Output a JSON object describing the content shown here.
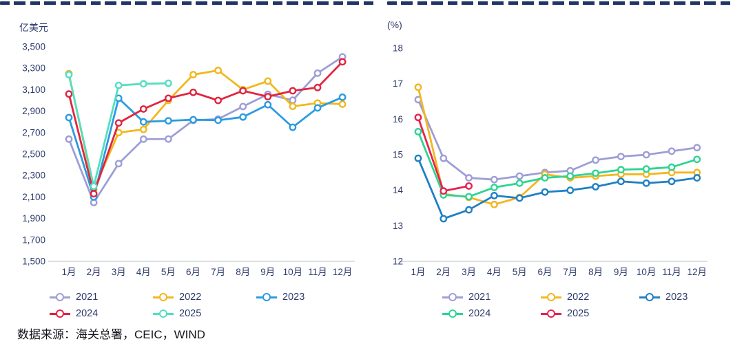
{
  "page": {
    "source_note": "数据来源：海关总署，CEIC，WIND"
  },
  "chart_data": [
    {
      "id": "exports",
      "type": "line",
      "unit_label": "亿美元",
      "categories": [
        "1月",
        "2月",
        "3月",
        "4月",
        "5月",
        "6月",
        "7月",
        "8月",
        "9月",
        "10月",
        "11月",
        "12月"
      ],
      "ylim": [
        1500,
        3500
      ],
      "ytick_step": 200,
      "comma_ticks": true,
      "grid": false,
      "legend_position": "bottom",
      "series": [
        {
          "name": "2021",
          "color": "#9d9ed6",
          "values": [
            2639,
            2048,
            2411,
            2639,
            2640,
            2814,
            2826,
            2943,
            3057,
            3002,
            3254,
            3406
          ]
        },
        {
          "name": "2022",
          "color": "#f2b71e",
          "values": [
            3250,
            2170,
            2700,
            2730,
            3000,
            3240,
            3280,
            3100,
            3180,
            2945,
            2975,
            2965
          ]
        },
        {
          "name": "2023",
          "color": "#2b9be0",
          "values": [
            2840,
            2100,
            3020,
            2800,
            2810,
            2820,
            2815,
            2845,
            2960,
            2750,
            2930,
            3030
          ]
        },
        {
          "name": "2024",
          "color": "#e02540",
          "values": [
            3060,
            2130,
            2790,
            2920,
            3020,
            3075,
            3000,
            3090,
            3035,
            3090,
            3120,
            3360
          ]
        },
        {
          "name": "2025",
          "color": "#55dec2",
          "values": [
            3240,
            2200,
            3140,
            3155,
            3160
          ]
        }
      ],
      "legend_rows": [
        [
          "2021",
          "2022",
          "2023"
        ],
        [
          "2024",
          "2025"
        ]
      ]
    },
    {
      "id": "share",
      "type": "line",
      "unit_label": "(%)",
      "categories": [
        "1月",
        "2月",
        "3月",
        "4月",
        "5月",
        "6月",
        "7月",
        "8月",
        "9月",
        "10月",
        "11月",
        "12月"
      ],
      "ylim": [
        12,
        18
      ],
      "ytick_step": 1,
      "comma_ticks": false,
      "grid": false,
      "legend_position": "bottom",
      "series": [
        {
          "name": "2021",
          "color": "#9d9ed6",
          "values": [
            16.55,
            14.9,
            14.35,
            14.3,
            14.4,
            14.5,
            14.55,
            14.85,
            14.95,
            15.0,
            15.1,
            15.2
          ]
        },
        {
          "name": "2022",
          "color": "#f2b71e",
          "values": [
            16.9,
            13.9,
            13.8,
            13.6,
            13.8,
            14.45,
            14.35,
            14.4,
            14.45,
            14.45,
            14.5,
            14.5
          ]
        },
        {
          "name": "2023",
          "color": "#1e80c4",
          "values": [
            14.9,
            13.2,
            13.45,
            13.85,
            13.78,
            13.95,
            14.0,
            14.1,
            14.25,
            14.2,
            14.25,
            14.35
          ]
        },
        {
          "name": "2024",
          "color": "#2ed494",
          "values": [
            15.65,
            13.87,
            13.82,
            14.08,
            14.2,
            14.35,
            14.4,
            14.48,
            14.58,
            14.6,
            14.65,
            14.87
          ]
        },
        {
          "name": "2025",
          "color": "#e6234e",
          "values": [
            16.05,
            13.98,
            14.12
          ]
        }
      ],
      "legend_rows": [
        [
          "2021",
          "2022",
          "2023"
        ],
        [
          "2024",
          "2025"
        ]
      ]
    }
  ]
}
